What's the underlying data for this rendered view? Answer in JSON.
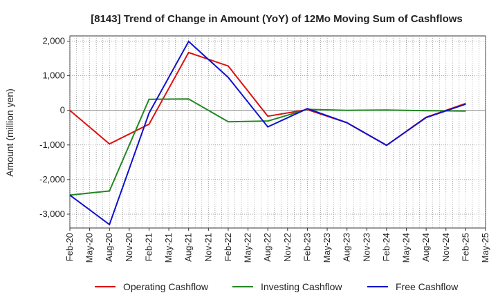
{
  "chart_data": {
    "type": "line",
    "title": "[8143]  Trend of Change in Amount (YoY) of 12Mo Moving Sum of Cashflows",
    "xlabel": "",
    "ylabel": "Amount (million yen)",
    "ylim": [
      -3400,
      2150
    ],
    "yticks": [
      2000,
      1000,
      0,
      -1000,
      -2000,
      -3000
    ],
    "ytick_labels": [
      "2,000",
      "1,000",
      "0",
      "-1,000",
      "-2,000",
      "-3,000"
    ],
    "x_tick_labels": [
      "Feb-20",
      "May-20",
      "Aug-20",
      "Nov-20",
      "Feb-21",
      "May-21",
      "Aug-21",
      "Nov-21",
      "Feb-22",
      "May-22",
      "Aug-22",
      "Nov-22",
      "Feb-23",
      "May-23",
      "Aug-23",
      "Nov-23",
      "Feb-24",
      "May-24",
      "Aug-24",
      "Nov-24",
      "Feb-25",
      "May-25"
    ],
    "grid": true,
    "legend_position": "bottom",
    "x": [
      "Feb-20",
      "Aug-20",
      "Feb-21",
      "Aug-21",
      "Feb-22",
      "Aug-22",
      "Feb-23",
      "Aug-23",
      "Feb-24",
      "Aug-24",
      "Feb-25"
    ],
    "series": [
      {
        "name": "Operating Cashflow",
        "color": "#dd1111",
        "values": [
          0,
          -970,
          -400,
          1670,
          1280,
          -170,
          20,
          -360,
          -1010,
          -200,
          200
        ]
      },
      {
        "name": "Investing Cashflow",
        "color": "#228822",
        "values": [
          -2450,
          -2330,
          320,
          330,
          -330,
          -310,
          30,
          0,
          10,
          -10,
          -20
        ]
      },
      {
        "name": "Free Cashflow",
        "color": "#1111cc",
        "values": [
          -2450,
          -3300,
          -80,
          1990,
          950,
          -480,
          50,
          -360,
          -1010,
          -210,
          180
        ]
      }
    ]
  }
}
